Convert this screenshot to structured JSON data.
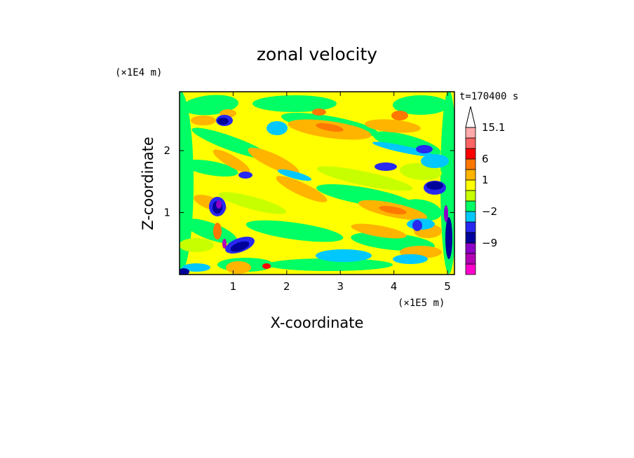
{
  "chart_data": {
    "type": "heatmap",
    "title": "zonal velocity",
    "xlabel": "X-coordinate",
    "ylabel": "Z-coordinate",
    "x_unit": "(×1E5 m)",
    "y_unit": "(×1E4 m)",
    "time_label": "t=170400 s",
    "xlim": [
      0,
      5.13
    ],
    "ylim": [
      0,
      2.95
    ],
    "x_ticks": [
      "1",
      "2",
      "3",
      "4",
      "5"
    ],
    "y_ticks": [
      "1",
      "2"
    ],
    "colorbar": {
      "levels": [
        {
          "color": "#ff00cc",
          "label": ""
        },
        {
          "color": "#b400b4",
          "label": ""
        },
        {
          "color": "#8c00c8",
          "label": "-9"
        },
        {
          "color": "#00009b",
          "label": ""
        },
        {
          "color": "#2828f0",
          "label": ""
        },
        {
          "color": "#00c8ff",
          "label": "-2"
        },
        {
          "color": "#00ff64",
          "label": ""
        },
        {
          "color": "#c8ff00",
          "label": ""
        },
        {
          "color": "#ffff00",
          "label": "1"
        },
        {
          "color": "#ffb400",
          "label": ""
        },
        {
          "color": "#ff7800",
          "label": "6"
        },
        {
          "color": "#ff0000",
          "label": ""
        },
        {
          "color": "#ff6464",
          "label": ""
        },
        {
          "color": "#ffaaaa",
          "label": "15.1"
        },
        {
          "color": "#ffffff",
          "label": ""
        }
      ]
    }
  }
}
